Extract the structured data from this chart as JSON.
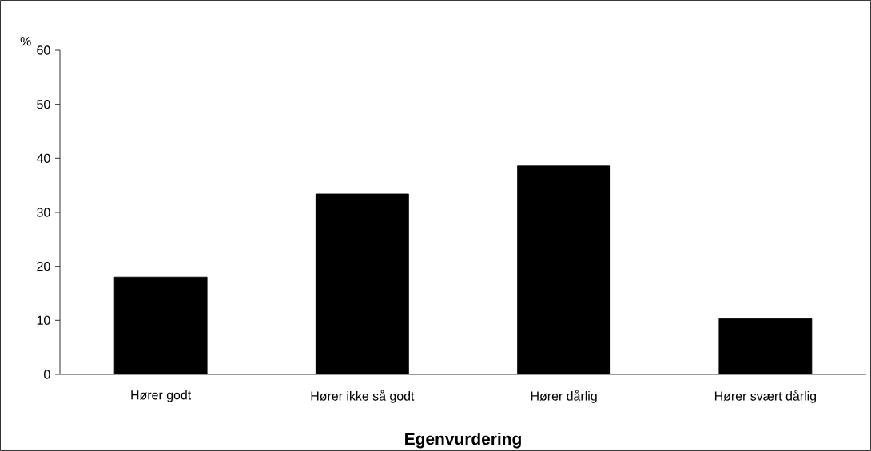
{
  "chart_data": {
    "type": "bar",
    "xlabel": "Egenvurdering",
    "ylabel": "%",
    "categories": [
      "Hører godt",
      "Hører ikke så godt",
      "Hører dårlig",
      "Hører svært dårlig"
    ],
    "values": [
      18.0,
      33.4,
      38.6,
      10.3
    ],
    "color": "#000000",
    "ylim": [
      0,
      60
    ],
    "yticks": [
      0,
      10,
      20,
      30,
      40,
      50,
      60
    ],
    "grid": false
  }
}
